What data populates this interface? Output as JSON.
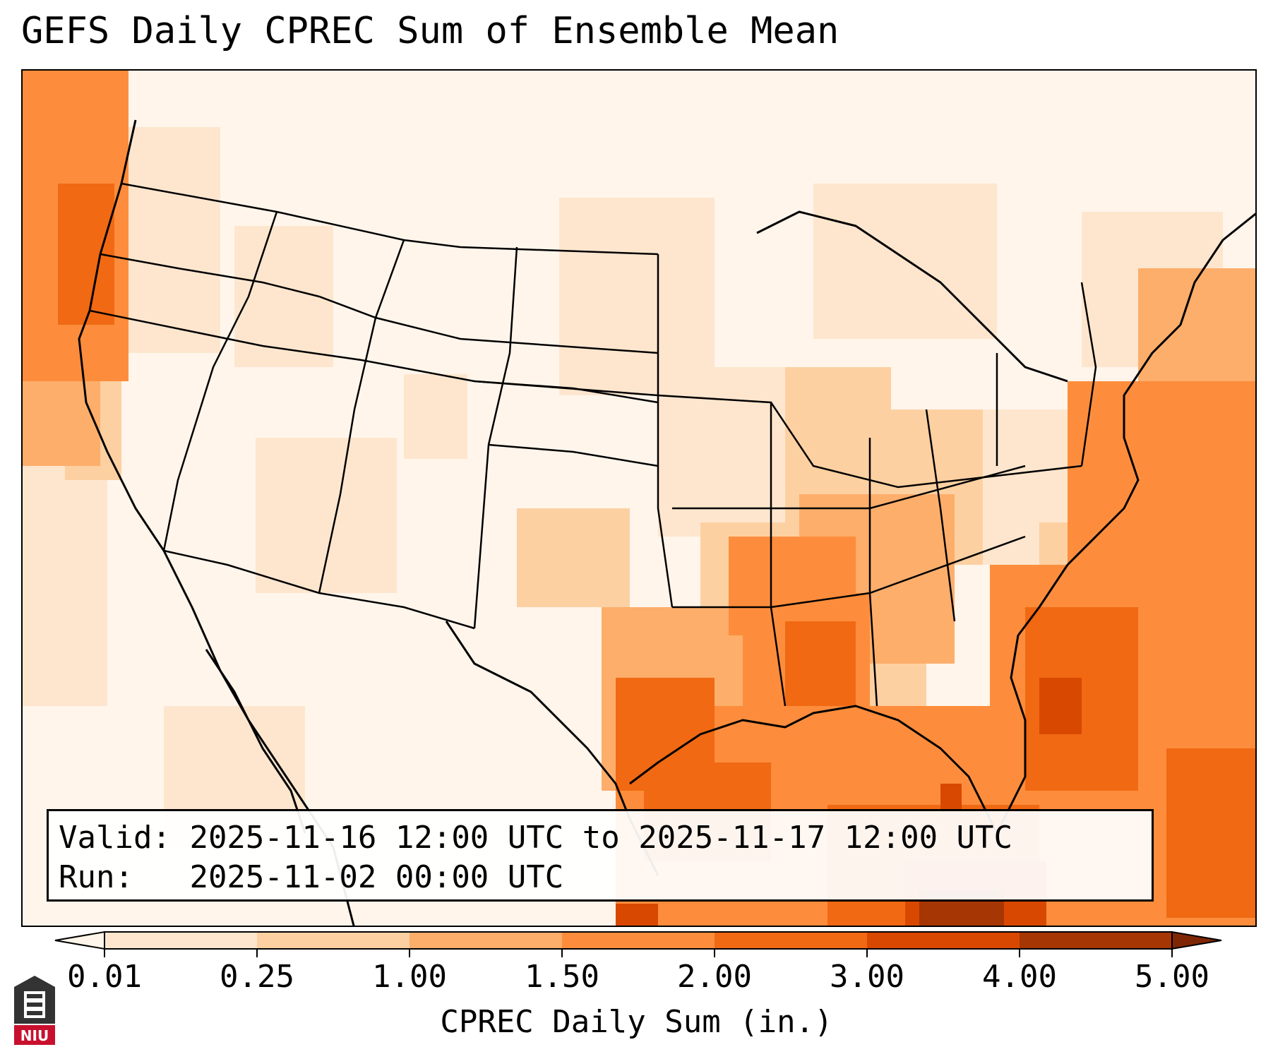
{
  "title": "GEFS Daily CPREC Sum of Ensemble Mean",
  "info": {
    "valid_label": "Valid:",
    "valid_value": "2025-11-16 12:00 UTC to 2025-11-17 12:00 UTC",
    "run_label": "Run:",
    "run_value": "2025-11-02 00:00 UTC"
  },
  "colorbar": {
    "label": "CPREC Daily Sum (in.)",
    "ticks": [
      "0.01",
      "0.25",
      "1.00",
      "1.50",
      "2.00",
      "3.00",
      "4.00",
      "5.00"
    ],
    "colors": [
      "#fff5eb",
      "#fee6ce",
      "#fdd0a2",
      "#fdae6b",
      "#fd8d3c",
      "#f16913",
      "#d94801",
      "#a63603",
      "#7f2704"
    ]
  },
  "logo": {
    "text": "NIU"
  }
}
